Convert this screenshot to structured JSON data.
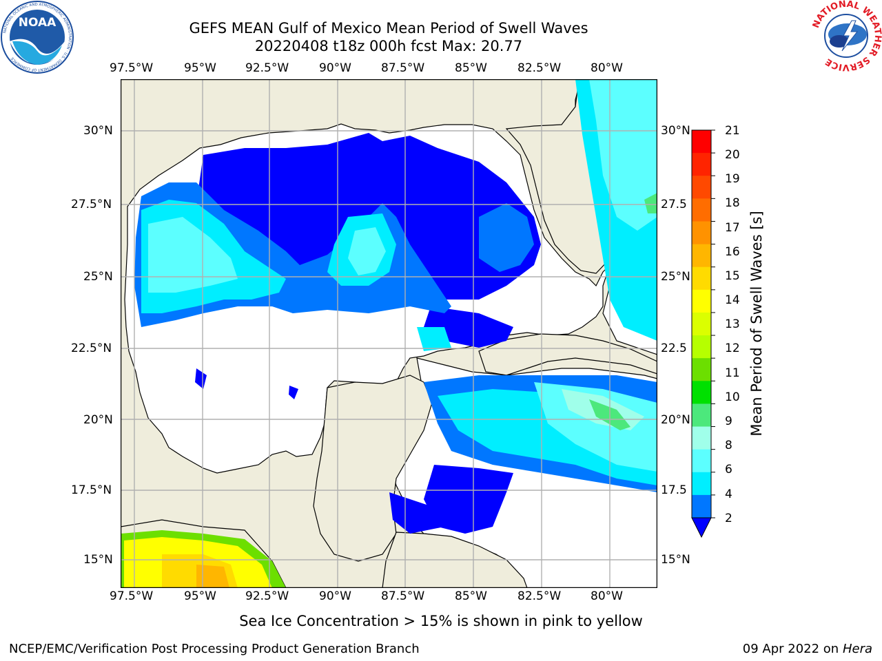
{
  "header": {
    "title_line1": "GEFS MEAN Gulf of Mexico Mean Period of Swell Waves",
    "title_line2": "20220408 t18z 000h fcst   Max: 20.77"
  },
  "logos": {
    "left": "NOAA",
    "left_ring": "NATIONAL OCEANIC AND ATMOSPHERIC ADMINISTRATION · U.S. DEPARTMENT OF COMMERCE",
    "right_ring": "NATIONAL WEATHER SERVICE"
  },
  "axes": {
    "lon_ticks": [
      "97.5°W",
      "95°W",
      "92.5°W",
      "90°W",
      "87.5°W",
      "85°W",
      "82.5°W",
      "80°W"
    ],
    "lat_ticks_left": [
      "30°N",
      "27.5°N",
      "25°N",
      "22.5°N",
      "20°N",
      "17.5°N",
      "15°N"
    ],
    "lat_ticks_right": [
      "30°N",
      "27.5",
      "25°N",
      "22.5",
      "20°N",
      "17.5",
      "15°N"
    ]
  },
  "colorbar": {
    "label": "Mean Period of Swell Waves [s]",
    "ticks": [
      "21",
      "20",
      "19",
      "18",
      "17",
      "16",
      "15",
      "14",
      "13",
      "12",
      "11",
      "10",
      "9",
      "8",
      "6",
      "4",
      "2"
    ],
    "colors": [
      "#fe0000",
      "#ff2400",
      "#ff4900",
      "#ff6d00",
      "#ff9200",
      "#ffb600",
      "#ffdb00",
      "#ffff00",
      "#dbff00",
      "#b6ff00",
      "#6cdf00",
      "#00e000",
      "#4ce87c",
      "#a0ffea",
      "#5cffff",
      "#00eeff",
      "#0077ff"
    ],
    "extend_color": "#0000ff"
  },
  "map": {
    "land_color": "#efeddc",
    "coast_color": "#000000",
    "grid_color": "#b0b0b0"
  },
  "note": "Sea Ice Concentration > 15% is shown in pink to yellow",
  "footer": {
    "left": "NCEP/EMC/Verification Post Processing Product Generation Branch",
    "right_date": "09 Apr 2022 on ",
    "right_host": "Hera"
  }
}
